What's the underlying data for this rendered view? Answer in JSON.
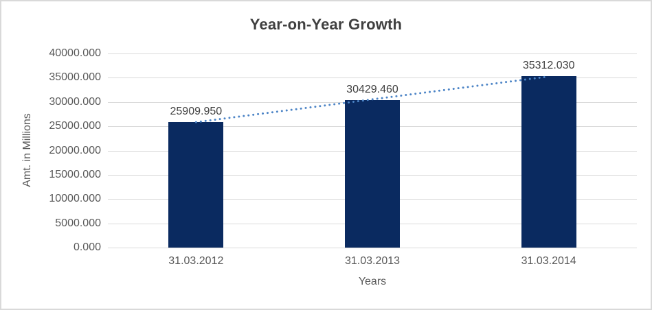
{
  "chart_data": {
    "type": "bar",
    "title": "Year-on-Year Growth",
    "categories": [
      "31.03.2012",
      "31.03.2013",
      "31.03.2014"
    ],
    "values": [
      25909.95,
      30429.46,
      35312.03
    ],
    "data_labels": [
      "25909.950",
      "30429.460",
      "35312.030"
    ],
    "xlabel": "Years",
    "ylabel": "Amt. in Millions",
    "ylim": [
      0,
      40000
    ],
    "ytick_step": 5000,
    "ytick_labels": [
      "40000.000",
      "35000.000",
      "30000.000",
      "25000.000",
      "20000.000",
      "15000.000",
      "10000.000",
      "5000.000",
      "0.000"
    ],
    "grid": "horizontal",
    "legend": "none",
    "trendline": {
      "type": "linear",
      "style": "dotted"
    },
    "colors": {
      "bar": "#0a2a60",
      "trendline": "#4c84c6",
      "gridline": "#d9d9d9",
      "axis_text": "#595959",
      "title_text": "#404040",
      "data_label_text": "#404040",
      "border": "#d9d9d9"
    }
  }
}
